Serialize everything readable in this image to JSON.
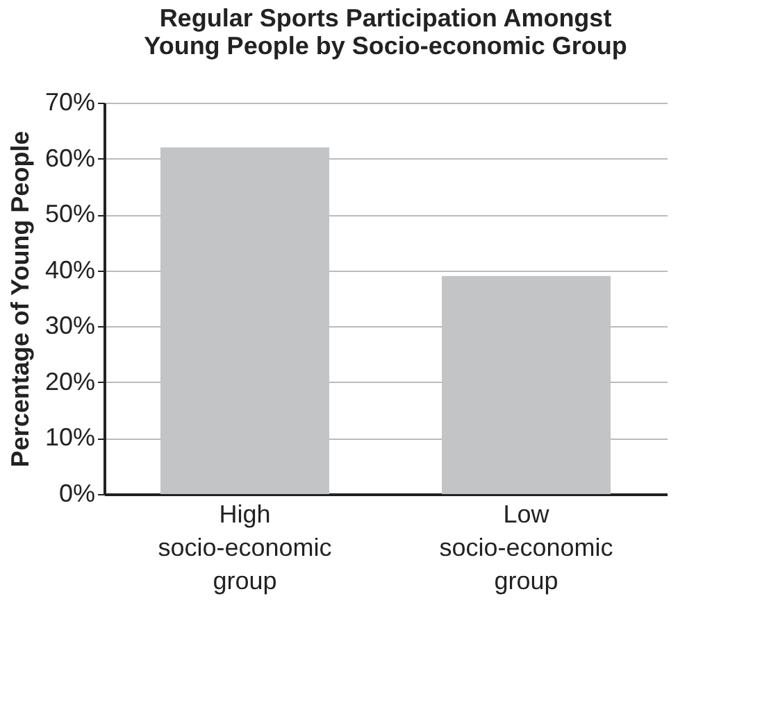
{
  "chart_data": {
    "type": "bar",
    "title": [
      "Regular Sports Participation Amongst",
      "Young People by Socio-economic Group"
    ],
    "ylabel": "Percentage of Young People",
    "categories": [
      [
        "High",
        "socio-economic",
        "group"
      ],
      [
        "Low",
        "socio-economic",
        "group"
      ]
    ],
    "values": [
      62,
      39
    ],
    "color": "#c2c4c6",
    "ylim": [
      0,
      70
    ],
    "yticks": [
      {
        "value": 0,
        "label": "0%"
      },
      {
        "value": 10,
        "label": "10%"
      },
      {
        "value": 20,
        "label": "20%"
      },
      {
        "value": 30,
        "label": "30%"
      },
      {
        "value": 40,
        "label": "40%"
      },
      {
        "value": 50,
        "label": "50%"
      },
      {
        "value": 60,
        "label": "60%"
      },
      {
        "value": 70,
        "label": "70%"
      }
    ],
    "grid": "y"
  }
}
